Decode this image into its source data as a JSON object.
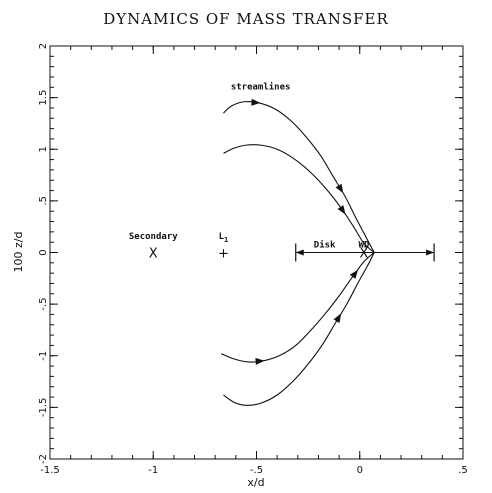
{
  "chart_data": {
    "type": "line",
    "title": "DYNAMICS OF MASS TRANSFER",
    "xlabel": "x/d",
    "ylabel": "100 z/d",
    "xlim": [
      -1.5,
      0.5
    ],
    "ylim": [
      -2,
      2
    ],
    "xticks": [
      -1.5,
      -1,
      -0.5,
      0,
      0.5
    ],
    "xtick_labels": [
      "-1.5",
      "-1",
      "-.5",
      "0",
      ".5"
    ],
    "yticks": [
      -2,
      -1.5,
      -1,
      -0.5,
      0,
      0.5,
      1,
      1.5,
      2
    ],
    "ytick_labels": [
      "-2",
      "-1.5",
      "-1",
      "-.5",
      "0",
      ".5",
      "1",
      "1.5",
      "2"
    ],
    "series": [
      {
        "name": "",
        "x": [
          -0.66,
          -0.62,
          -0.56,
          -0.49,
          -0.41,
          -0.33,
          -0.26,
          -0.19,
          -0.13,
          -0.07,
          -0.02,
          0.03,
          0.07
        ],
        "y": [
          1.35,
          1.42,
          1.46,
          1.45,
          1.39,
          1.27,
          1.12,
          0.94,
          0.74,
          0.54,
          0.34,
          0.15,
          0.0
        ],
        "arrows": [
          -0.5,
          -0.09
        ]
      },
      {
        "name": "",
        "x": [
          -0.66,
          -0.61,
          -0.55,
          -0.48,
          -0.4,
          -0.32,
          -0.24,
          -0.16,
          -0.09,
          -0.03,
          0.02,
          0.07
        ],
        "y": [
          0.96,
          1.01,
          1.04,
          1.04,
          1.0,
          0.91,
          0.78,
          0.61,
          0.43,
          0.25,
          0.09,
          0.0
        ],
        "arrows": [
          -0.08
        ]
      },
      {
        "name": "",
        "x": [
          -0.67,
          -0.61,
          -0.54,
          -0.47,
          -0.39,
          -0.31,
          -0.24,
          -0.17,
          -0.1,
          -0.04,
          0.02,
          0.07
        ],
        "y": [
          -0.98,
          -1.03,
          -1.06,
          -1.05,
          -1.0,
          -0.9,
          -0.76,
          -0.6,
          -0.42,
          -0.25,
          -0.09,
          0.0
        ],
        "arrows": [
          -0.48,
          -0.02
        ]
      },
      {
        "name": "",
        "x": [
          -0.66,
          -0.61,
          -0.55,
          -0.48,
          -0.4,
          -0.32,
          -0.25,
          -0.18,
          -0.12,
          -0.06,
          -0.01,
          0.04,
          0.07
        ],
        "y": [
          -1.38,
          -1.45,
          -1.48,
          -1.46,
          -1.38,
          -1.24,
          -1.08,
          -0.89,
          -0.69,
          -0.49,
          -0.3,
          -0.12,
          0.0
        ],
        "arrows": [
          -0.1
        ]
      }
    ],
    "annotations": [
      {
        "text": "streamlines",
        "x": -0.48,
        "y": 1.58
      },
      {
        "text": "Secondary",
        "x": -1.0,
        "y": 0.13
      },
      {
        "text": "L",
        "x": -0.66,
        "y": 0.13,
        "subscript": "1"
      },
      {
        "text": "Disk",
        "x": -0.17,
        "y": 0.05
      },
      {
        "text": "WD",
        "x": 0.02,
        "y": 0.05
      }
    ],
    "markers": [
      {
        "label": "X",
        "x": -1.0,
        "y": 0.0
      },
      {
        "label": "+",
        "x": -0.66,
        "y": 0.0
      },
      {
        "label": "X",
        "x": 0.02,
        "y": 0.0
      }
    ],
    "disk": {
      "x0": -0.31,
      "x1": 0.36,
      "y": 0.0
    },
    "grid": false
  }
}
